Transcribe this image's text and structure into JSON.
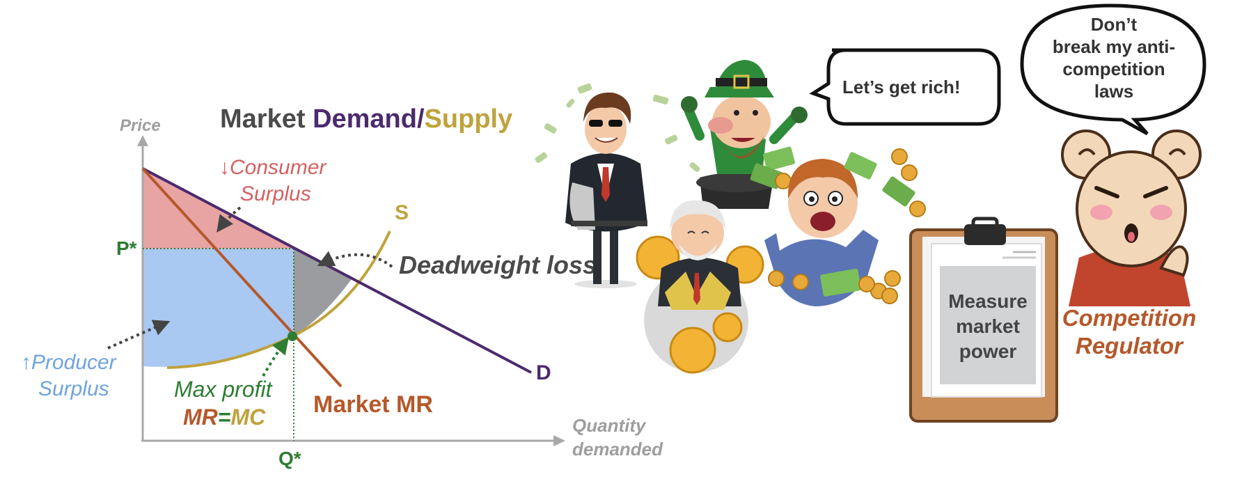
{
  "diagram": {
    "axes": {
      "y_label": "Price",
      "x_label_line1": "Quantity",
      "x_label_line2": "demanded",
      "price_marker": "P*",
      "quantity_marker": "Q*"
    },
    "title": {
      "part1": "Market ",
      "part2": "Demand",
      "part3": "/",
      "part4": "Supply"
    },
    "curves": {
      "supply": "S",
      "demand": "D",
      "market_mr": "Market MR"
    },
    "annotations": {
      "consumer_surplus_arrow": "↓",
      "consumer_surplus_line1": "Consumer",
      "consumer_surplus_line2": "Surplus",
      "producer_surplus_arrow": "↑",
      "producer_surplus_line1": "Producer",
      "producer_surplus_line2": "Surplus",
      "deadweight_loss": "Deadweight loss",
      "max_profit": "Max profit",
      "mr": "MR",
      "eq": "=",
      "mc": "MC"
    },
    "colors": {
      "consumer_surplus": "#e8a3a3",
      "producer_surplus": "#a9c8f2",
      "deadweight_loss": "#9a9c9f",
      "demand": "#4b2a6e",
      "supply": "#c0a23c",
      "mr": "#b5582a",
      "equilibrium": "#2e7d32"
    }
  },
  "illustration": {
    "speech_rich": "Let’s get rich!",
    "speech_regulator_line1": "Don’t",
    "speech_regulator_line2": "break my anti-",
    "speech_regulator_line3": "competition",
    "speech_regulator_line4": "laws",
    "clipboard_line1": "Measure",
    "clipboard_line2": "market",
    "clipboard_line3": "power",
    "regulator_line1": "Competition",
    "regulator_line2": "Regulator"
  }
}
